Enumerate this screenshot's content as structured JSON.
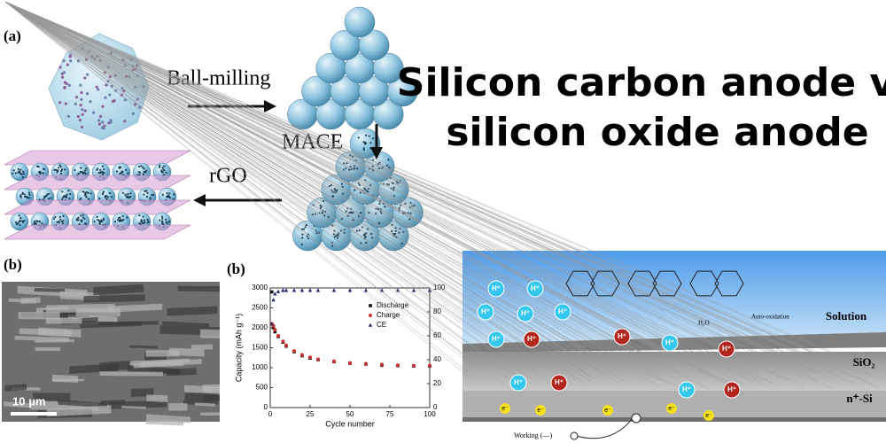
{
  "panel_a": {
    "label": "(a)",
    "steps": [
      "Ball-milling",
      "MACE",
      "rGO"
    ]
  },
  "title_lines": [
    "Silicon carbon anode vs",
    "silicon oxide anode"
  ],
  "sem_image": {
    "label": "(b)",
    "scale_bar": "10 μm"
  },
  "chart_data": {
    "type": "scatter",
    "panel_label": "(b)",
    "x_label": "Cycle number",
    "y_label": "Capacity (mAh g⁻¹)",
    "x": [
      1,
      2,
      3,
      5,
      8,
      10,
      15,
      20,
      25,
      30,
      40,
      50,
      60,
      70,
      80,
      90,
      100
    ],
    "series": [
      {
        "name": "Discharge",
        "color": "#111111",
        "marker": "square",
        "values": [
          2900,
          2000,
          1900,
          1780,
          1640,
          1540,
          1400,
          1300,
          1240,
          1200,
          1150,
          1110,
          1090,
          1060,
          1050,
          1040,
          1040
        ]
      },
      {
        "name": "Charge",
        "color": "#d0312d",
        "marker": "circle",
        "values": [
          2100,
          2050,
          1950,
          1800,
          1660,
          1560,
          1420,
          1320,
          1260,
          1210,
          1160,
          1120,
          1100,
          1080,
          1060,
          1050,
          1050
        ]
      },
      {
        "name": "CE",
        "color": "#1f2a6b",
        "marker": "triangle",
        "axis": "y2",
        "values": [
          70,
          90,
          95,
          97,
          98,
          98,
          98,
          98,
          98,
          98,
          98,
          98,
          98,
          98,
          98,
          98,
          98
        ]
      }
    ],
    "xlim": [
      0,
      100
    ],
    "xticks": [
      0,
      25,
      50,
      75,
      100
    ],
    "ylim": [
      0,
      3000
    ],
    "yticks": [
      0,
      500,
      1000,
      1500,
      2000,
      2500,
      3000
    ],
    "y2lim": [
      0,
      100
    ],
    "y2ticks": [
      0,
      20,
      40,
      60,
      80,
      100
    ],
    "legend": "upper-right"
  },
  "schematic": {
    "layers": [
      "Solution",
      "SiO₂",
      "n⁺-Si"
    ],
    "electrode": "Working (—)",
    "annotations": [
      "Auto-oxidation",
      "H₂O"
    ],
    "ions": [
      "H⁺",
      "H⁺",
      "H⁺",
      "H⁺",
      "H⁺",
      "H⁺",
      "H⁺",
      "H⁺",
      "H⁺",
      "H⁺",
      "H⁺",
      "H⁺",
      "H⁺",
      "H⁺"
    ],
    "electrons": [
      "e⁻",
      "e⁻",
      "e⁻",
      "e⁻",
      "e⁻"
    ]
  }
}
